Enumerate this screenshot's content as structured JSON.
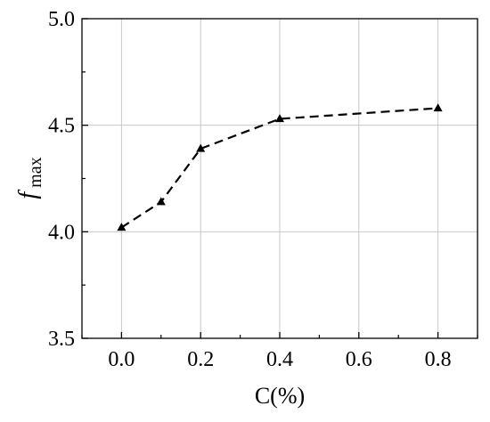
{
  "chart_data": {
    "type": "line",
    "xlabel": "C(%)",
    "ylabel": {
      "main": "f",
      "subscript": "max"
    },
    "xlim": [
      -0.1,
      0.9
    ],
    "ylim": [
      3.5,
      5.0
    ],
    "x_ticks": [
      0.0,
      0.2,
      0.4,
      0.6,
      0.8
    ],
    "x_tick_labels": [
      "0.0",
      "0.2",
      "0.4",
      "0.6",
      "0.8"
    ],
    "y_ticks": [
      3.5,
      4.0,
      4.5,
      5.0
    ],
    "y_tick_labels": [
      "3.5",
      "4.0",
      "4.5",
      "5.0"
    ],
    "grid": true,
    "series": [
      {
        "x": [
          0.0,
          0.1,
          0.2,
          0.4,
          0.8
        ],
        "y": [
          4.02,
          4.14,
          4.39,
          4.53,
          4.58
        ],
        "line_style": "dashed",
        "marker": "triangle",
        "color": "#000000"
      }
    ]
  }
}
